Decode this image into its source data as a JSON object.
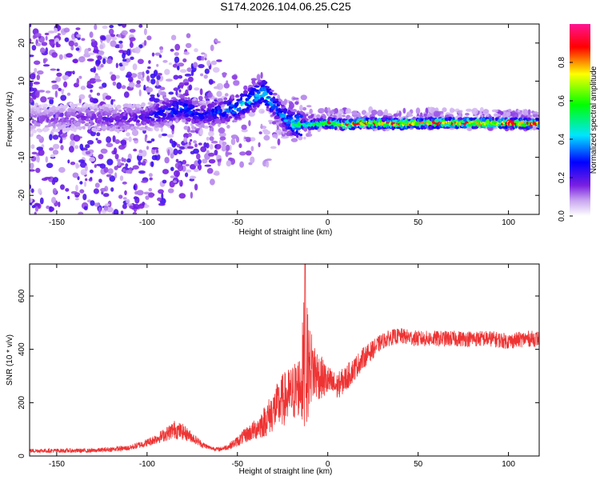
{
  "figure_title": "S174.2026.104.06.25.C25",
  "chart_data": [
    {
      "type": "heatmap",
      "title": "S174.2026.104.06.25.C25",
      "xlabel": "Height of straight line (km)",
      "ylabel": "Frequency (Hz)",
      "xlim": [
        -165,
        117
      ],
      "ylim": [
        -25,
        25
      ],
      "xticks": [
        -150,
        -100,
        -50,
        0,
        50,
        100
      ],
      "yticks": [
        -20,
        -10,
        0,
        10,
        20
      ],
      "colorbar": {
        "label": "Normalized spectral amplitude",
        "range": [
          0,
          1
        ],
        "ticks": [
          0.0,
          0.2,
          0.4,
          0.6,
          0.8
        ],
        "colors": [
          "#ffffff",
          "#8a2be2",
          "#0000ff",
          "#00e5ff",
          "#00ff00",
          "#ffff00",
          "#ff0000",
          "#ff1493"
        ]
      },
      "ridge": {
        "x": [
          -165,
          -140,
          -120,
          -100,
          -90,
          -80,
          -70,
          -60,
          -50,
          -40,
          -35,
          -30,
          -25,
          -20,
          -15,
          -10,
          0,
          10,
          20,
          40,
          60,
          80,
          100,
          115
        ],
        "frequency": [
          0,
          0.5,
          0,
          0.5,
          2,
          3,
          1,
          2,
          3,
          6,
          7,
          4,
          1,
          -1,
          -1.5,
          -1.5,
          -1,
          -1.5,
          -1,
          -1.2,
          -1,
          -1,
          -1,
          -1.2
        ],
        "amplitude": [
          0.15,
          0.18,
          0.2,
          0.25,
          0.35,
          0.4,
          0.3,
          0.35,
          0.45,
          0.5,
          0.55,
          0.45,
          0.4,
          0.5,
          0.6,
          0.65,
          0.75,
          0.85,
          0.9,
          0.9,
          0.9,
          0.9,
          0.9,
          0.9
        ]
      }
    },
    {
      "type": "line",
      "xlabel": "Height of straight line (km)",
      "ylabel": "SNR (10 * v/v)",
      "xlim": [
        -165,
        117
      ],
      "ylim": [
        0,
        720
      ],
      "xticks": [
        -150,
        -100,
        -50,
        0,
        50,
        100
      ],
      "yticks": [
        0,
        200,
        400,
        600
      ],
      "series": [
        {
          "name": "SNR",
          "color": "#ee3333",
          "x": [
            -165,
            -150,
            -130,
            -110,
            -100,
            -90,
            -85,
            -80,
            -75,
            -70,
            -65,
            -60,
            -55,
            -50,
            -45,
            -40,
            -35,
            -30,
            -25,
            -20,
            -15,
            -13,
            -10,
            -5,
            0,
            5,
            10,
            15,
            20,
            25,
            30,
            35,
            40,
            50,
            60,
            70,
            80,
            90,
            100,
            110,
            117
          ],
          "y": [
            20,
            20,
            20,
            30,
            50,
            80,
            100,
            90,
            70,
            45,
            30,
            25,
            35,
            55,
            80,
            100,
            130,
            170,
            210,
            230,
            270,
            330,
            340,
            300,
            280,
            260,
            290,
            330,
            370,
            400,
            430,
            445,
            450,
            440,
            440,
            440,
            440,
            440,
            430,
            440,
            440
          ],
          "noise": [
            8,
            8,
            8,
            10,
            15,
            25,
            35,
            30,
            20,
            12,
            8,
            8,
            12,
            20,
            30,
            40,
            60,
            80,
            100,
            110,
            120,
            300,
            150,
            90,
            60,
            50,
            50,
            45,
            40,
            35,
            30,
            30,
            30,
            30,
            30,
            30,
            30,
            30,
            30,
            30,
            30
          ]
        }
      ]
    }
  ]
}
